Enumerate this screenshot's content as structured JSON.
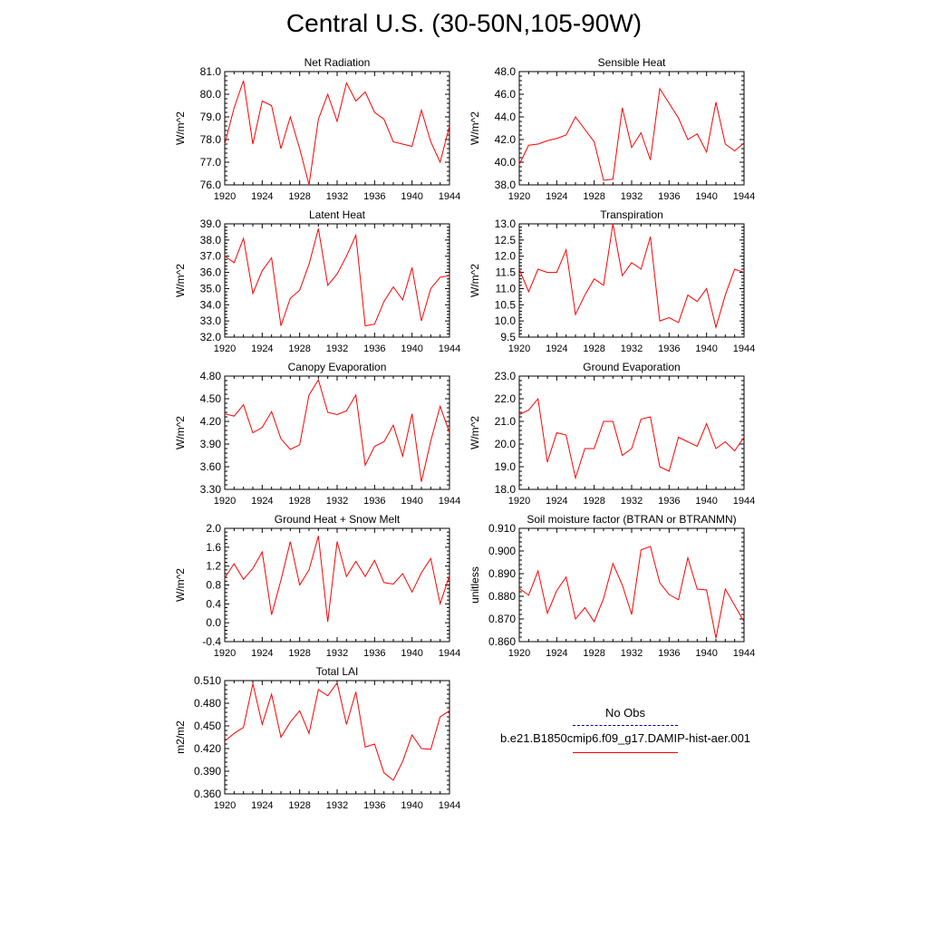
{
  "title": "Central U.S. (30-50N,105-90W)",
  "colors": {
    "model": "#ff0000",
    "obs": "#0000aa",
    "axis": "#000000"
  },
  "legend": {
    "obs_label": "No Obs",
    "model_label": "b.e21.B1850cmip6.f09_g17.DAMIP-hist-aer.001"
  },
  "chart_data": [
    {
      "type": "line",
      "title": "Net Radiation",
      "ylabel": "W/m^2",
      "xlim": [
        1920,
        1944
      ],
      "ylim": [
        76.0,
        81.0
      ],
      "xticks": [
        1920,
        1924,
        1928,
        1932,
        1936,
        1940,
        1944
      ],
      "yticks": [
        "76.0",
        "77.0",
        "78.0",
        "79.0",
        "80.0",
        "81.0"
      ],
      "series": [
        {
          "x": [
            1920,
            1921,
            1922,
            1923,
            1924,
            1925,
            1926,
            1927,
            1928,
            1929,
            1930,
            1931,
            1932,
            1933,
            1934,
            1935,
            1936,
            1937,
            1938,
            1939,
            1940,
            1941,
            1942,
            1943,
            1944
          ],
          "values": [
            77.8,
            79.4,
            80.6,
            77.8,
            79.7,
            79.5,
            77.6,
            79.0,
            77.6,
            76.0,
            78.9,
            80.0,
            78.8,
            80.5,
            79.7,
            80.1,
            79.2,
            78.9,
            77.9,
            77.8,
            77.7,
            79.3,
            77.9,
            77.0,
            78.6
          ]
        }
      ]
    },
    {
      "type": "line",
      "title": "Sensible Heat",
      "ylabel": "W/m^2",
      "xlim": [
        1920,
        1944
      ],
      "ylim": [
        38.0,
        48.0
      ],
      "xticks": [
        1920,
        1924,
        1928,
        1932,
        1936,
        1940,
        1944
      ],
      "yticks": [
        "38.0",
        "40.0",
        "42.0",
        "44.0",
        "46.0",
        "48.0"
      ],
      "series": [
        {
          "x": [
            1920,
            1921,
            1922,
            1923,
            1924,
            1925,
            1926,
            1927,
            1928,
            1929,
            1930,
            1931,
            1932,
            1933,
            1934,
            1935,
            1936,
            1937,
            1938,
            1939,
            1940,
            1941,
            1942,
            1943,
            1944
          ],
          "values": [
            39.8,
            41.5,
            41.6,
            41.9,
            42.1,
            42.4,
            44.0,
            42.9,
            41.8,
            38.4,
            38.5,
            44.8,
            41.3,
            42.6,
            40.2,
            46.5,
            45.2,
            43.9,
            42.0,
            42.5,
            40.9,
            45.3,
            41.6,
            41.0,
            41.7
          ]
        }
      ]
    },
    {
      "type": "line",
      "title": "Latent Heat",
      "ylabel": "W/m^2",
      "xlim": [
        1920,
        1944
      ],
      "ylim": [
        32.0,
        39.0
      ],
      "xticks": [
        1920,
        1924,
        1928,
        1932,
        1936,
        1940,
        1944
      ],
      "yticks": [
        "32.0",
        "33.0",
        "34.0",
        "35.0",
        "36.0",
        "37.0",
        "38.0",
        "39.0"
      ],
      "series": [
        {
          "x": [
            1920,
            1921,
            1922,
            1923,
            1924,
            1925,
            1926,
            1927,
            1928,
            1929,
            1930,
            1931,
            1932,
            1933,
            1934,
            1935,
            1936,
            1937,
            1938,
            1939,
            1940,
            1941,
            1942,
            1943,
            1944
          ],
          "values": [
            37.0,
            36.6,
            38.1,
            34.7,
            36.1,
            36.9,
            32.7,
            34.4,
            34.9,
            36.5,
            38.7,
            35.2,
            35.9,
            37.0,
            38.3,
            32.7,
            32.8,
            34.2,
            35.1,
            34.3,
            36.3,
            33.0,
            35.0,
            35.7,
            35.8
          ]
        }
      ]
    },
    {
      "type": "line",
      "title": "Transpiration",
      "ylabel": "W/m^2",
      "xlim": [
        1920,
        1944
      ],
      "ylim": [
        9.5,
        13.0
      ],
      "xticks": [
        1920,
        1924,
        1928,
        1932,
        1936,
        1940,
        1944
      ],
      "yticks": [
        "9.5",
        "10.0",
        "10.5",
        "11.0",
        "11.5",
        "12.0",
        "12.5",
        "13.0"
      ],
      "series": [
        {
          "x": [
            1920,
            1921,
            1922,
            1923,
            1924,
            1925,
            1926,
            1927,
            1928,
            1929,
            1930,
            1931,
            1932,
            1933,
            1934,
            1935,
            1936,
            1937,
            1938,
            1939,
            1940,
            1941,
            1942,
            1943,
            1944
          ],
          "values": [
            11.6,
            10.9,
            11.6,
            11.5,
            11.5,
            12.2,
            10.2,
            10.8,
            11.3,
            11.1,
            13.0,
            11.4,
            11.8,
            11.6,
            12.6,
            10.0,
            10.1,
            9.95,
            10.8,
            10.6,
            11.0,
            9.8,
            10.8,
            11.6,
            11.5
          ]
        }
      ]
    },
    {
      "type": "line",
      "title": "Canopy Evaporation",
      "ylabel": "W/m^2",
      "xlim": [
        1920,
        1944
      ],
      "ylim": [
        3.3,
        4.8
      ],
      "xticks": [
        1920,
        1924,
        1928,
        1932,
        1936,
        1940,
        1944
      ],
      "yticks": [
        "3.30",
        "3.60",
        "3.90",
        "4.20",
        "4.50",
        "4.80"
      ],
      "series": [
        {
          "x": [
            1920,
            1921,
            1922,
            1923,
            1924,
            1925,
            1926,
            1927,
            1928,
            1929,
            1930,
            1931,
            1932,
            1933,
            1934,
            1935,
            1936,
            1937,
            1938,
            1939,
            1940,
            1941,
            1942,
            1943,
            1944
          ],
          "values": [
            4.3,
            4.27,
            4.42,
            4.05,
            4.12,
            4.33,
            3.97,
            3.83,
            3.89,
            4.55,
            4.75,
            4.32,
            4.29,
            4.34,
            4.55,
            3.62,
            3.87,
            3.93,
            4.15,
            3.74,
            4.3,
            3.4,
            3.94,
            4.4,
            4.05
          ]
        }
      ]
    },
    {
      "type": "line",
      "title": "Ground Evaporation",
      "ylabel": "W/m^2",
      "xlim": [
        1920,
        1944
      ],
      "ylim": [
        18.0,
        23.0
      ],
      "xticks": [
        1920,
        1924,
        1928,
        1932,
        1936,
        1940,
        1944
      ],
      "yticks": [
        "18.0",
        "19.0",
        "20.0",
        "21.0",
        "22.0",
        "23.0"
      ],
      "series": [
        {
          "x": [
            1920,
            1921,
            1922,
            1923,
            1924,
            1925,
            1926,
            1927,
            1928,
            1929,
            1930,
            1931,
            1932,
            1933,
            1934,
            1935,
            1936,
            1937,
            1938,
            1939,
            1940,
            1941,
            1942,
            1943,
            1944
          ],
          "values": [
            21.3,
            21.5,
            22.0,
            19.2,
            20.5,
            20.4,
            18.5,
            19.8,
            19.8,
            21.0,
            21.0,
            19.5,
            19.8,
            21.1,
            21.2,
            19.0,
            18.8,
            20.3,
            20.1,
            19.9,
            20.9,
            19.8,
            20.1,
            19.7,
            20.3
          ]
        }
      ]
    },
    {
      "type": "line",
      "title": "Ground Heat + Snow Melt",
      "ylabel": "W/m^2",
      "xlim": [
        1920,
        1944
      ],
      "ylim": [
        -0.4,
        2.0
      ],
      "xticks": [
        1920,
        1924,
        1928,
        1932,
        1936,
        1940,
        1944
      ],
      "yticks": [
        "-0.4",
        "0.0",
        "0.4",
        "0.8",
        "1.2",
        "1.6",
        "2.0"
      ],
      "series": [
        {
          "x": [
            1920,
            1921,
            1922,
            1923,
            1924,
            1925,
            1926,
            1927,
            1928,
            1929,
            1930,
            1931,
            1932,
            1933,
            1934,
            1935,
            1936,
            1937,
            1938,
            1939,
            1940,
            1941,
            1942,
            1943,
            1944
          ],
          "values": [
            0.95,
            1.25,
            0.92,
            1.15,
            1.5,
            0.17,
            0.9,
            1.72,
            0.8,
            1.12,
            1.84,
            0.02,
            1.72,
            0.98,
            1.3,
            0.98,
            1.32,
            0.85,
            0.82,
            1.04,
            0.65,
            1.06,
            1.36,
            0.4,
            1.0
          ]
        }
      ]
    },
    {
      "type": "line",
      "title": "Soil moisture factor (BTRAN or BTRANMN)",
      "ylabel": "unitless",
      "xlim": [
        1920,
        1944
      ],
      "ylim": [
        0.86,
        0.91
      ],
      "xticks": [
        1920,
        1924,
        1928,
        1932,
        1936,
        1940,
        1944
      ],
      "yticks": [
        "0.860",
        "0.870",
        "0.880",
        "0.890",
        "0.900",
        "0.910"
      ],
      "series": [
        {
          "x": [
            1920,
            1921,
            1922,
            1923,
            1924,
            1925,
            1926,
            1927,
            1928,
            1929,
            1930,
            1931,
            1932,
            1933,
            1934,
            1935,
            1936,
            1937,
            1938,
            1939,
            1940,
            1941,
            1942,
            1943,
            1944
          ],
          "values": [
            0.8835,
            0.8805,
            0.8912,
            0.8725,
            0.8825,
            0.8885,
            0.87,
            0.875,
            0.8688,
            0.879,
            0.8945,
            0.885,
            0.872,
            0.9005,
            0.902,
            0.886,
            0.8808,
            0.8785,
            0.897,
            0.8832,
            0.8828,
            0.8615,
            0.8832,
            0.876,
            0.8688
          ]
        }
      ]
    },
    {
      "type": "line",
      "title": "Total LAI",
      "ylabel": "m2/m2",
      "xlim": [
        1920,
        1944
      ],
      "ylim": [
        0.36,
        0.51
      ],
      "xticks": [
        1920,
        1924,
        1928,
        1932,
        1936,
        1940,
        1944
      ],
      "yticks": [
        "0.360",
        "0.390",
        "0.420",
        "0.450",
        "0.480",
        "0.510"
      ],
      "series": [
        {
          "x": [
            1920,
            1921,
            1922,
            1923,
            1924,
            1925,
            1926,
            1927,
            1928,
            1929,
            1930,
            1931,
            1932,
            1933,
            1934,
            1935,
            1936,
            1937,
            1938,
            1939,
            1940,
            1941,
            1942,
            1943,
            1944
          ],
          "values": [
            0.43,
            0.44,
            0.448,
            0.506,
            0.452,
            0.492,
            0.435,
            0.455,
            0.47,
            0.44,
            0.498,
            0.49,
            0.507,
            0.452,
            0.495,
            0.422,
            0.426,
            0.388,
            0.378,
            0.403,
            0.438,
            0.42,
            0.419,
            0.462,
            0.47
          ]
        }
      ]
    }
  ]
}
